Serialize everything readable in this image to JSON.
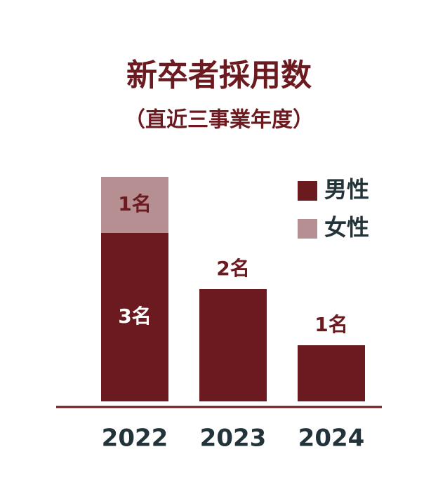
{
  "chart_data": {
    "type": "stacked-bar",
    "title": "新卒者採用数",
    "subtitle": "（直近三事業年度）",
    "categories": [
      "2022",
      "2023",
      "2024"
    ],
    "series": [
      {
        "name": "男性",
        "color": "#6b1a1f",
        "values": [
          3,
          2,
          1
        ],
        "value_labels": [
          "3名",
          "2名",
          "1名"
        ]
      },
      {
        "name": "女性",
        "color": "#b58f91",
        "values": [
          1,
          0,
          0
        ],
        "value_labels": [
          "1名",
          null,
          null
        ]
      }
    ],
    "ylim": [
      0,
      4
    ]
  }
}
